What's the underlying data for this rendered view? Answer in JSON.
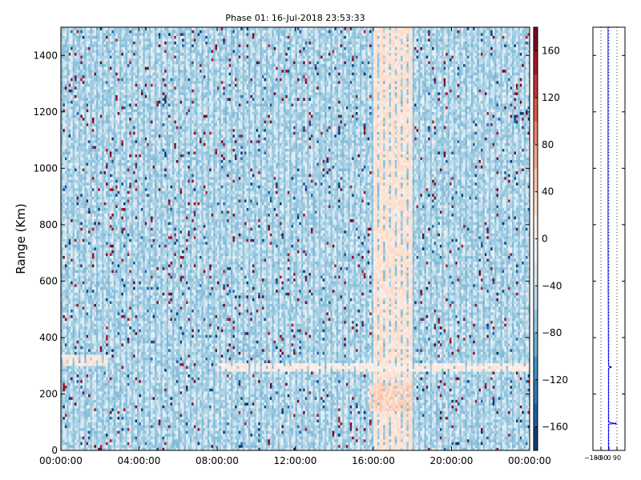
{
  "chart_data": [
    {
      "type": "heatmap",
      "title": "Phase 01: 16-Jul-2018 23:53:33",
      "xlabel": "",
      "ylabel": "Range (Km)",
      "x_ticks": [
        "00:00:00",
        "04:00:00",
        "08:00:00",
        "12:00:00",
        "16:00:00",
        "20:00:00",
        "00:00:00"
      ],
      "x_range_hours": [
        0,
        24
      ],
      "y_ticks": [
        0,
        200,
        400,
        600,
        800,
        1000,
        1200,
        1400
      ],
      "ylim": [
        0,
        1500
      ],
      "colormap": "RdBu_r",
      "color_range": [
        -180,
        180
      ],
      "colorbar_ticks": [
        -160,
        -120,
        -80,
        -40,
        0,
        40,
        80,
        120,
        160
      ],
      "features": [
        {
          "hours": [
            16.0,
            18.0
          ],
          "range_km": [
            0,
            1500
          ],
          "phase_level": 25
        },
        {
          "hours": [
            0.0,
            2.5
          ],
          "range_km": [
            300,
            340
          ],
          "phase_level": 20
        },
        {
          "hours": [
            8.0,
            24.0
          ],
          "range_km": [
            280,
            310
          ],
          "phase_level": 15
        },
        {
          "hours": [
            15.8,
            18.0
          ],
          "range_km": [
            140,
            240
          ],
          "phase_level": 40
        }
      ],
      "colors": {
        "pos_max": "#67001f",
        "neg_max": "#053061",
        "neutral": "#f7f7f7",
        "stripe": "#9ecae1"
      }
    },
    {
      "type": "line",
      "ylabel": "",
      "x_ticks": [
        "-180",
        "-90",
        "0",
        "90"
      ],
      "xlim": [
        -180,
        180
      ],
      "ylim": [
        0,
        1500
      ],
      "series": [
        {
          "color": "#0000ff",
          "points": [
            {
              "x": -10,
              "range_km": 1500
            },
            {
              "x": -10,
              "range_km": 800
            },
            {
              "x": -8,
              "range_km": 560
            },
            {
              "x": -5,
              "range_km": 300
            },
            {
              "x": 20,
              "range_km": 295
            },
            {
              "x": -5,
              "range_km": 290
            },
            {
              "x": -5,
              "range_km": 100
            },
            {
              "x": 75,
              "range_km": 95
            },
            {
              "x": -5,
              "range_km": 93
            },
            {
              "x": -5,
              "range_km": 0
            }
          ]
        }
      ]
    }
  ]
}
